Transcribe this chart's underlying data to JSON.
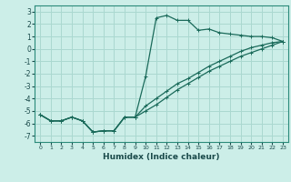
{
  "xlabel": "Humidex (Indice chaleur)",
  "bg_color": "#cceee8",
  "grid_color": "#aad8d0",
  "line_color": "#1a6a5a",
  "xlim": [
    -0.5,
    23.5
  ],
  "ylim": [
    -7.5,
    3.5
  ],
  "xticks": [
    0,
    1,
    2,
    3,
    4,
    5,
    6,
    7,
    8,
    9,
    10,
    11,
    12,
    13,
    14,
    15,
    16,
    17,
    18,
    19,
    20,
    21,
    22,
    23
  ],
  "yticks": [
    -7,
    -6,
    -5,
    -4,
    -3,
    -2,
    -1,
    0,
    1,
    2,
    3
  ],
  "curve1_x": [
    0,
    1,
    2,
    3,
    4,
    5,
    6,
    7,
    8,
    9,
    10,
    11,
    12,
    13,
    14,
    15,
    16,
    17,
    18,
    19,
    20,
    21,
    22,
    23
  ],
  "curve1_y": [
    -5.3,
    -5.8,
    -5.8,
    -5.5,
    -5.8,
    -6.7,
    -6.6,
    -6.6,
    -5.5,
    -5.5,
    -2.2,
    2.5,
    2.7,
    2.3,
    2.3,
    1.5,
    1.6,
    1.3,
    1.2,
    1.1,
    1.0,
    1.0,
    0.9,
    0.6
  ],
  "curve2_x": [
    0,
    1,
    2,
    3,
    4,
    5,
    6,
    7,
    8,
    9,
    10,
    11,
    12,
    13,
    14,
    15,
    16,
    17,
    18,
    19,
    20,
    21,
    22,
    23
  ],
  "curve2_y": [
    -5.3,
    -5.8,
    -5.8,
    -5.5,
    -5.8,
    -6.7,
    -6.6,
    -6.6,
    -5.5,
    -5.5,
    -4.6,
    -4.0,
    -3.4,
    -2.8,
    -2.4,
    -1.9,
    -1.4,
    -1.0,
    -0.6,
    -0.2,
    0.1,
    0.3,
    0.5,
    0.6
  ],
  "curve3_x": [
    0,
    1,
    2,
    3,
    4,
    5,
    6,
    7,
    8,
    9,
    10,
    11,
    12,
    13,
    14,
    15,
    16,
    17,
    18,
    19,
    20,
    21,
    22,
    23
  ],
  "curve3_y": [
    -5.3,
    -5.8,
    -5.8,
    -5.5,
    -5.8,
    -6.7,
    -6.6,
    -6.6,
    -5.5,
    -5.5,
    -5.0,
    -4.5,
    -3.9,
    -3.3,
    -2.8,
    -2.3,
    -1.8,
    -1.4,
    -1.0,
    -0.6,
    -0.3,
    0.0,
    0.3,
    0.6
  ]
}
